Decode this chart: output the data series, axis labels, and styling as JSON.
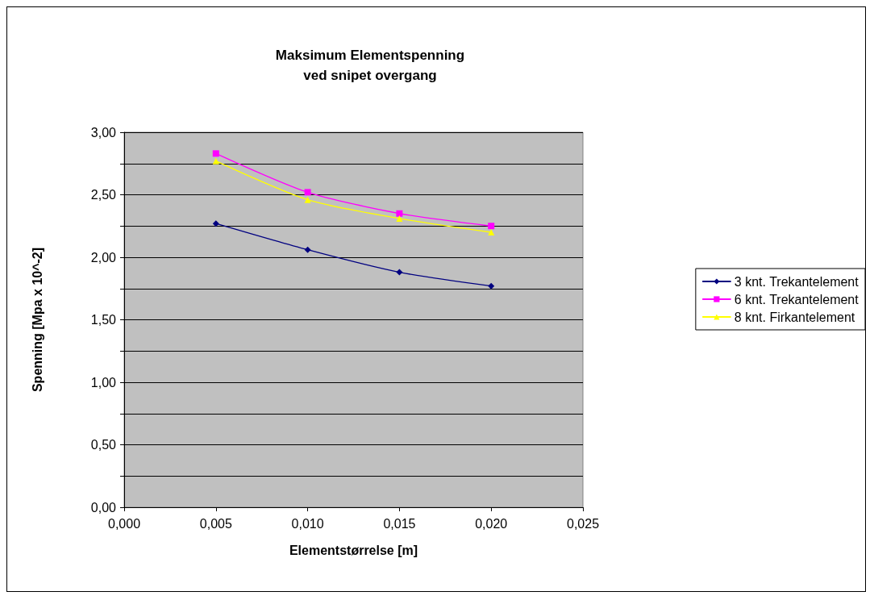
{
  "chart_data": {
    "type": "line",
    "title": "Maksimum Elementspenning\nved snipet overgang",
    "xlabel": "Elementstørrelse [m]",
    "ylabel": "Spenning [Mpa x 10^-2]",
    "x": [
      0.005,
      0.01,
      0.015,
      0.02
    ],
    "series": [
      {
        "name": "3 knt. Trekantelement",
        "color": "#000080",
        "marker": "diamond",
        "values": [
          2.27,
          2.06,
          1.88,
          1.77
        ]
      },
      {
        "name": "6 knt. Trekantelement",
        "color": "#ff00ff",
        "marker": "square",
        "values": [
          2.83,
          2.52,
          2.35,
          2.25
        ]
      },
      {
        "name": "8 knt. Firkantelement",
        "color": "#ffff00",
        "marker": "triangle",
        "values": [
          2.77,
          2.46,
          2.31,
          2.2
        ]
      }
    ],
    "xlim": [
      0,
      0.025
    ],
    "xticks": [
      {
        "value": 0,
        "label": "0,000"
      },
      {
        "value": 0.005,
        "label": "0,005"
      },
      {
        "value": 0.01,
        "label": "0,010"
      },
      {
        "value": 0.015,
        "label": "0,015"
      },
      {
        "value": 0.02,
        "label": "0,020"
      },
      {
        "value": 0.025,
        "label": "0,025"
      }
    ],
    "ylim": [
      0,
      3
    ],
    "yticks": [
      {
        "value": 0,
        "label": "0,00"
      },
      {
        "value": 0.25,
        "label": null
      },
      {
        "value": 0.5,
        "label": "0,50"
      },
      {
        "value": 0.75,
        "label": null
      },
      {
        "value": 1,
        "label": "1,00"
      },
      {
        "value": 1.25,
        "label": null
      },
      {
        "value": 1.5,
        "label": "1,50"
      },
      {
        "value": 1.75,
        "label": null
      },
      {
        "value": 2,
        "label": "2,00"
      },
      {
        "value": 2.25,
        "label": null
      },
      {
        "value": 2.5,
        "label": "2,50"
      },
      {
        "value": 2.75,
        "label": null
      },
      {
        "value": 3,
        "label": "3,00"
      }
    ],
    "grid": "y",
    "legend": "right"
  }
}
